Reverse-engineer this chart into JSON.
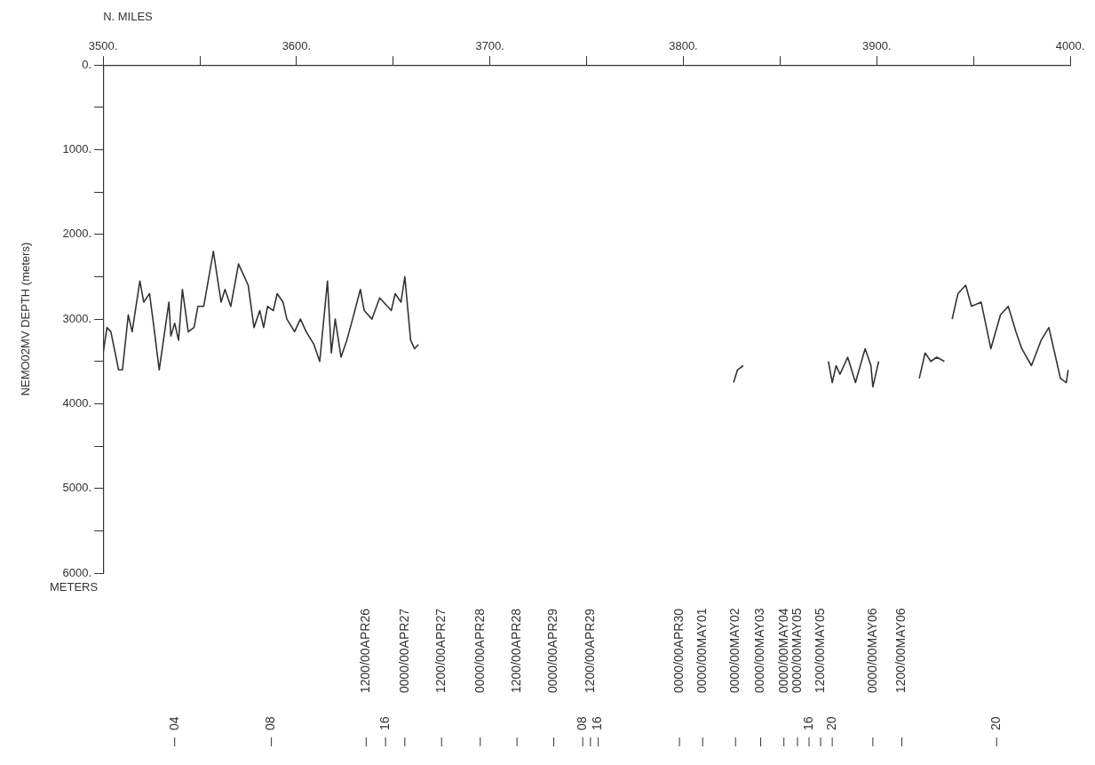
{
  "chart_data": {
    "type": "line",
    "xlabel": "N. MILES",
    "ylabel": "NEMO02MV DEPTH (meters)",
    "xlim": [
      3500,
      4000
    ],
    "xticks": [
      {
        "value": 3500,
        "label": "3500."
      },
      {
        "value": 3550,
        "label": null
      },
      {
        "value": 3600,
        "label": "3600."
      },
      {
        "value": 3650,
        "label": null
      },
      {
        "value": 3700,
        "label": "3700."
      },
      {
        "value": 3750,
        "label": null
      },
      {
        "value": 3800,
        "label": "3800."
      },
      {
        "value": 3850,
        "label": null
      },
      {
        "value": 3900,
        "label": "3900."
      },
      {
        "value": 3950,
        "label": null
      },
      {
        "value": 4000,
        "label": "4000."
      }
    ],
    "ylim": [
      6000,
      0
    ],
    "yticks": [
      {
        "value": 0,
        "label": "0."
      },
      {
        "value": 500,
        "label": null
      },
      {
        "value": 1000,
        "label": "1000."
      },
      {
        "value": 1500,
        "label": null
      },
      {
        "value": 2000,
        "label": "2000."
      },
      {
        "value": 2500,
        "label": null
      },
      {
        "value": 3000,
        "label": "3000."
      },
      {
        "value": 3500,
        "label": null
      },
      {
        "value": 4000,
        "label": "4000."
      },
      {
        "value": 4500,
        "label": null
      },
      {
        "value": 5000,
        "label": "5000."
      },
      {
        "value": 5500,
        "label": null
      },
      {
        "value": 6000,
        "label": "6000."
      }
    ],
    "grid": false,
    "legend": false,
    "marker": "none",
    "line_style": "solid",
    "series": [
      {
        "color": "#333333",
        "x": [
          3500,
          3502,
          3504,
          3508,
          3510,
          3513,
          3515,
          3519,
          3521,
          3524,
          3526,
          3529,
          3534,
          3535,
          3537,
          3539,
          3541,
          3544,
          3547,
          3549,
          3552,
          3557,
          3561,
          3563,
          3566,
          3570,
          3573,
          3575,
          3578,
          3581,
          3583,
          3585,
          3588,
          3590,
          3593,
          3595,
          3599,
          3602,
          3605,
          3609,
          3612,
          3616,
          3618,
          3620,
          3623,
          3626,
          3629,
          3633,
          3635,
          3639,
          3643,
          3649,
          3651,
          3654,
          3656,
          3659,
          3661,
          3663,
          3700,
          3826,
          3828,
          3831,
          3850,
          3875,
          3877,
          3879,
          3881,
          3885,
          3889,
          3894,
          3897,
          3898,
          3901,
          3910,
          3922,
          3925,
          3928,
          3931,
          3935,
          3937,
          3939,
          3942,
          3946,
          3949,
          3954,
          3959,
          3964,
          3968,
          3972,
          3975,
          3980,
          3985,
          3989,
          3992,
          3995,
          3998,
          3999
        ],
        "values": [
          3400,
          3100,
          3150,
          3600,
          3600,
          2950,
          3150,
          2550,
          2800,
          2700,
          3050,
          3600,
          2800,
          3200,
          3050,
          3250,
          2650,
          3150,
          3100,
          2850,
          2850,
          2200,
          2800,
          2650,
          2850,
          2350,
          2500,
          2600,
          3100,
          2900,
          3100,
          2850,
          2900,
          2700,
          2800,
          3000,
          3150,
          3000,
          3150,
          3300,
          3500,
          2550,
          3400,
          3000,
          3450,
          3250,
          3000,
          2650,
          2900,
          3000,
          2750,
          2900,
          2700,
          2800,
          2500,
          3250,
          3350,
          3300,
          null,
          3750,
          3600,
          3550,
          null,
          3500,
          3750,
          3550,
          3650,
          3450,
          3750,
          3350,
          3550,
          3800,
          3500,
          null,
          3700,
          3400,
          3500,
          3450,
          3500,
          null,
          3000,
          2700,
          2600,
          2850,
          2800,
          3350,
          2950,
          2850,
          3150,
          3350,
          3550,
          3250,
          3100,
          3400,
          3700,
          3750,
          3600
        ]
      }
    ],
    "annotations": [
      "METERS",
      "04",
      "08",
      "1200/00APR26",
      "16",
      "0000/00APR27",
      "1200/00APR27",
      "0000/00APR28",
      "1200/00APR28",
      "0000/00APR29",
      "08",
      "1200/00APR29",
      "16",
      "0000/00APR30",
      "0000/00MAY01",
      "0000/00MAY02",
      "0000/00MAY03",
      "0000/00MAY04",
      "0000/00MAY05",
      "16",
      "1200/00MAY05",
      "20",
      "0000/00MAY06",
      "1200/00MAY06",
      "20"
    ]
  }
}
